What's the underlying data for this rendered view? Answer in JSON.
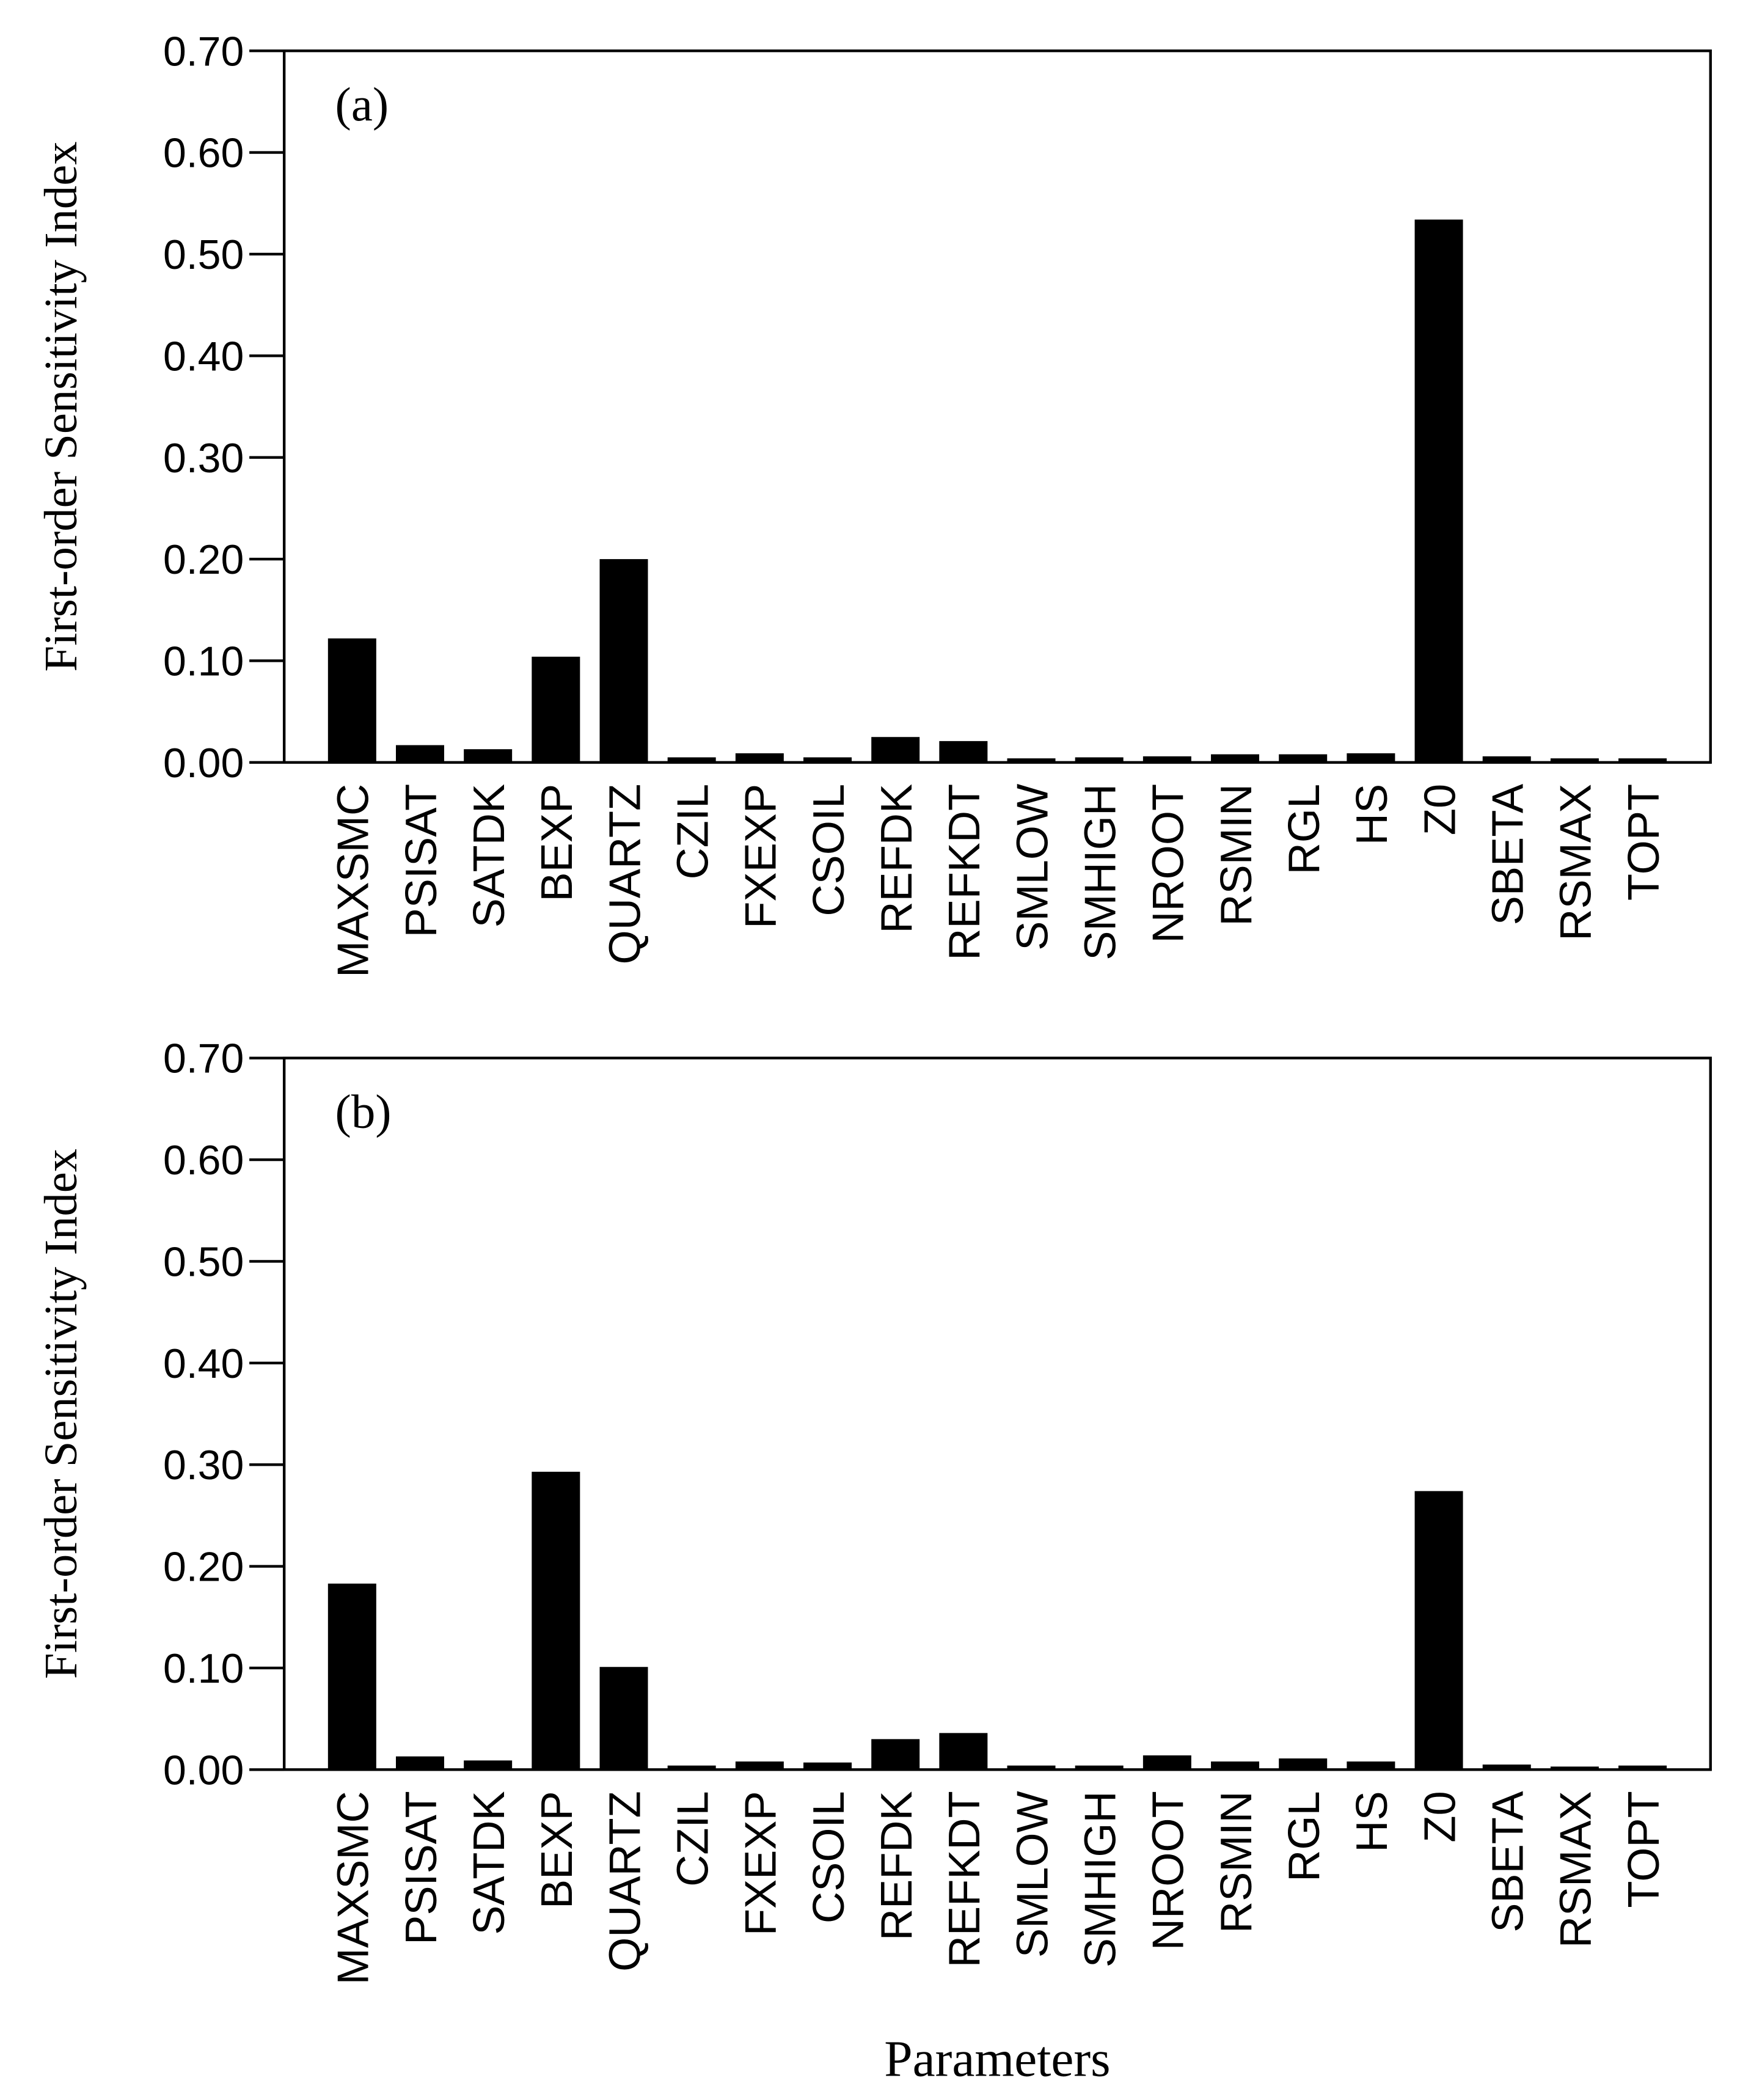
{
  "chart_data": [
    {
      "type": "bar",
      "annotation": "(a)",
      "y_label": "First-order Sensitivity Index",
      "color": "#000000",
      "categories": [
        "MAXSMC",
        "PSISAT",
        "SATDK",
        "BEXP",
        "QUARTZ",
        "CZIL",
        "FXEXP",
        "CSOIL",
        "REFDK",
        "REFKDT",
        "SMLOW",
        "SMHIGH",
        "NROOT",
        "RSMIN",
        "RGL",
        "HS",
        "Z0",
        "SBETA",
        "RSMAX",
        "TOPT"
      ],
      "values": [
        0.122,
        0.017,
        0.013,
        0.104,
        0.2,
        0.005,
        0.009,
        0.005,
        0.025,
        0.021,
        0.004,
        0.005,
        0.006,
        0.008,
        0.008,
        0.009,
        0.534,
        0.006,
        0.004,
        0.004
      ],
      "ylim": [
        0,
        0.7
      ],
      "yticks": [
        {
          "value": 0,
          "label": "0.00"
        },
        {
          "value": 0.1,
          "label": "0.10"
        },
        {
          "value": 0.2,
          "label": "0.20"
        },
        {
          "value": 0.3,
          "label": "0.30"
        },
        {
          "value": 0.4,
          "label": "0.40"
        },
        {
          "value": 0.5,
          "label": "0.50"
        },
        {
          "value": 0.6,
          "label": "0.60"
        },
        {
          "value": 0.7,
          "label": "0.70"
        }
      ]
    },
    {
      "type": "bar",
      "annotation": "(b)",
      "y_label": "First-order Sensitivity Index",
      "x_label": "Parameters",
      "color": "#000000",
      "categories": [
        "MAXSMC",
        "PSISAT",
        "SATDK",
        "BEXP",
        "QUARTZ",
        "CZIL",
        "FXEXP",
        "CSOIL",
        "REFDK",
        "REFKDT",
        "SMLOW",
        "SMHIGH",
        "NROOT",
        "RSMIN",
        "RGL",
        "HS",
        "Z0",
        "SBETA",
        "RSMAX",
        "TOPT"
      ],
      "values": [
        0.183,
        0.013,
        0.009,
        0.293,
        0.101,
        0.004,
        0.008,
        0.007,
        0.03,
        0.036,
        0.004,
        0.004,
        0.014,
        0.008,
        0.011,
        0.008,
        0.274,
        0.005,
        0.003,
        0.004
      ],
      "ylim": [
        0,
        0.7
      ],
      "yticks": [
        {
          "value": 0,
          "label": "0.00"
        },
        {
          "value": 0.1,
          "label": "0.10"
        },
        {
          "value": 0.2,
          "label": "0.20"
        },
        {
          "value": 0.3,
          "label": "0.30"
        },
        {
          "value": 0.4,
          "label": "0.40"
        },
        {
          "value": 0.5,
          "label": "0.50"
        },
        {
          "value": 0.6,
          "label": "0.60"
        },
        {
          "value": 0.7,
          "label": "0.70"
        }
      ]
    }
  ]
}
